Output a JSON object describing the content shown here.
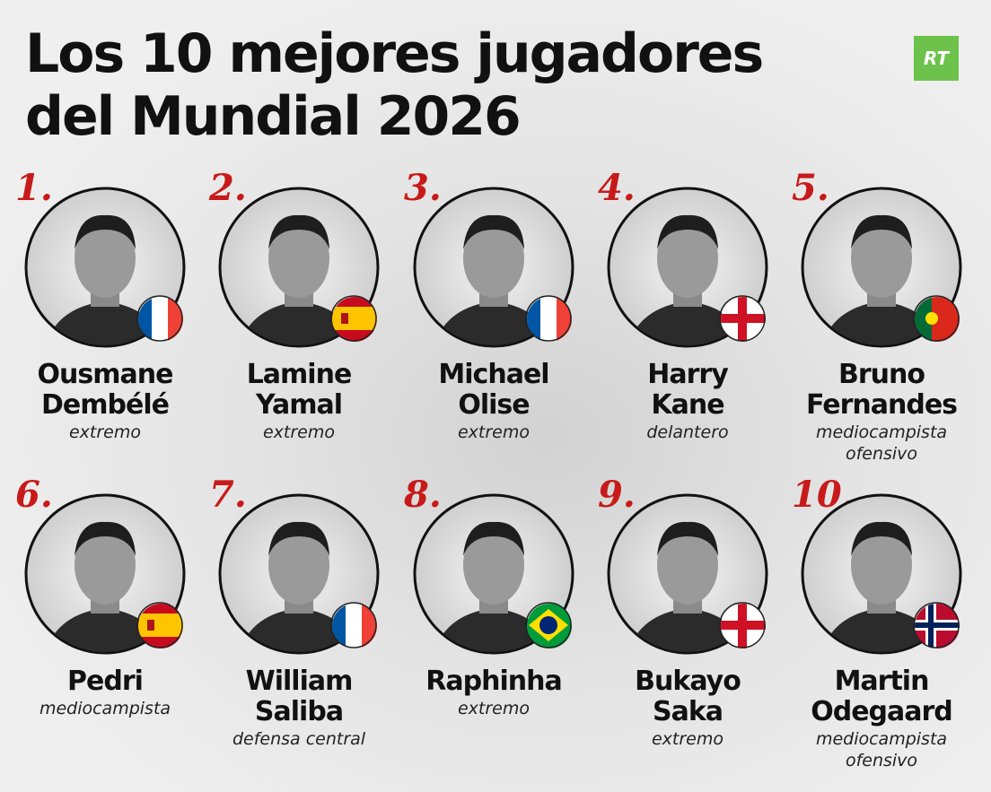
{
  "header": {
    "title_lines": [
      "Los 10 mejores jugadores",
      "del Mundial 2026"
    ],
    "logo": "RT"
  },
  "players": [
    {
      "rank": "1.",
      "name_lines": [
        "Ousmane",
        "Dembélé"
      ],
      "position_lines": [
        "extremo"
      ]
    },
    {
      "rank": "2.",
      "name_lines": [
        "Lamine",
        "Yamal"
      ],
      "position_lines": [
        "extremo"
      ]
    },
    {
      "rank": "3.",
      "name_lines": [
        "Michael",
        "Olise"
      ],
      "position_lines": [
        "extremo"
      ]
    },
    {
      "rank": "4.",
      "name_lines": [
        "Harry",
        "Kane"
      ],
      "position_lines": [
        "delantero"
      ]
    },
    {
      "rank": "5.",
      "name_lines": [
        "Bruno",
        "Fernandes"
      ],
      "position_lines": [
        "mediocampista",
        "ofensivo"
      ]
    },
    {
      "rank": "6.",
      "name_lines": [
        "Pedri"
      ],
      "position_lines": [
        "mediocampista"
      ]
    },
    {
      "rank": "7.",
      "name_lines": [
        "William",
        "Saliba"
      ],
      "position_lines": [
        "defensa central"
      ]
    },
    {
      "rank": "8.",
      "name_lines": [
        "Raphinha"
      ],
      "position_lines": [
        "extremo"
      ]
    },
    {
      "rank": "9.",
      "name_lines": [
        "Bukayo",
        "Saka"
      ],
      "position_lines": [
        "extremo"
      ]
    },
    {
      "rank": "10.",
      "name_lines": [
        "Martin",
        "Odegaard"
      ],
      "position_lines": [
        "mediocampista",
        "ofensivo"
      ]
    }
  ]
}
